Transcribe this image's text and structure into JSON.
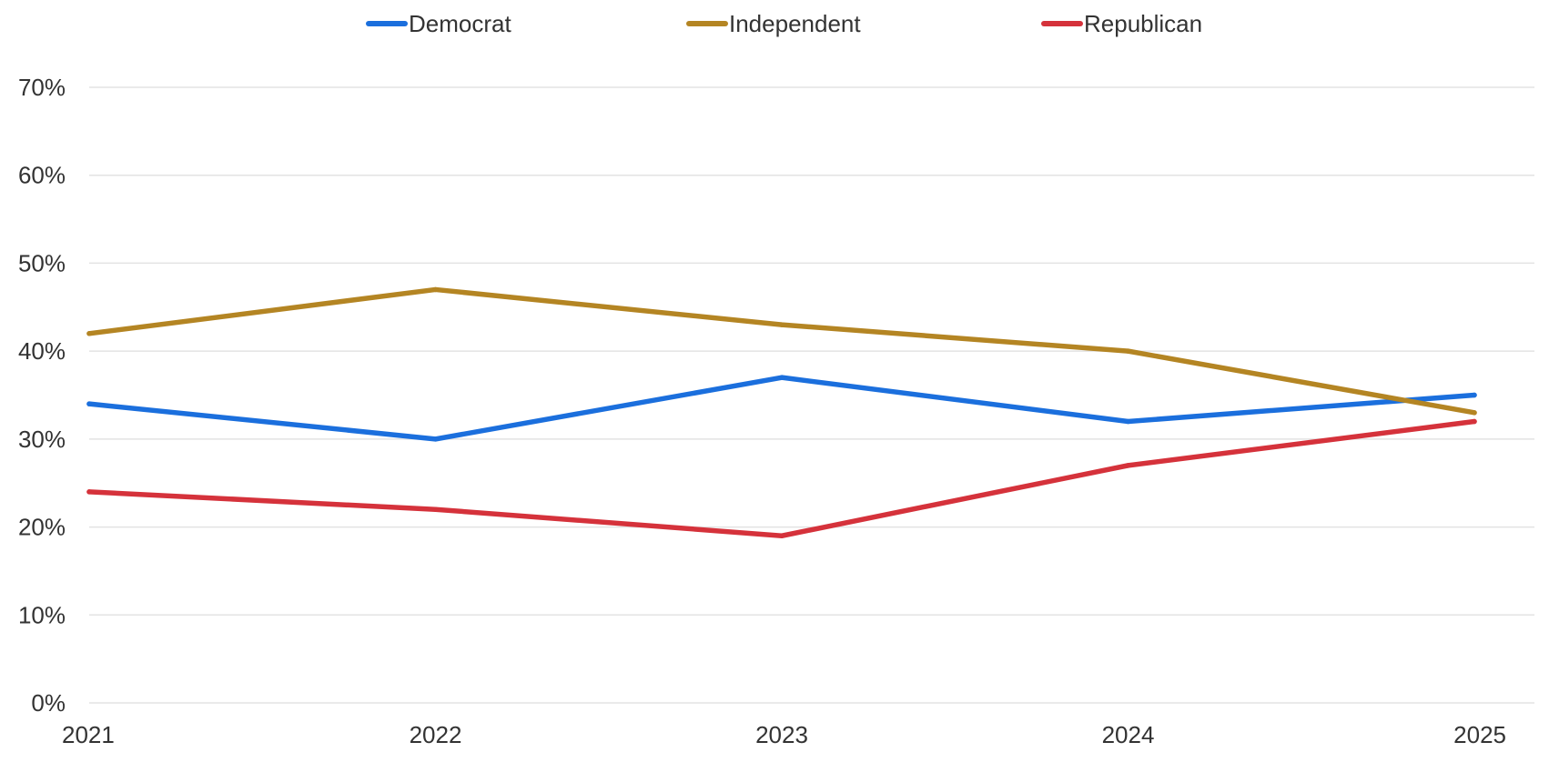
{
  "chart_data": {
    "type": "line",
    "title": "",
    "xlabel": "",
    "ylabel": "",
    "x": [
      "2021",
      "2022",
      "2023",
      "2024",
      "2025"
    ],
    "ylim": [
      0,
      70
    ],
    "y_ticks": [
      "0%",
      "10%",
      "20%",
      "30%",
      "40%",
      "50%",
      "60%",
      "70%"
    ],
    "y_tick_values": [
      0,
      10,
      20,
      30,
      40,
      50,
      60,
      70
    ],
    "grid": true,
    "legend_position": "top-center",
    "series": [
      {
        "name": "Democrat",
        "color": "#1b6fdd",
        "values": [
          34,
          30,
          37,
          32,
          35
        ]
      },
      {
        "name": "Independent",
        "color": "#b48523",
        "values": [
          42,
          47,
          43,
          40,
          33
        ]
      },
      {
        "name": "Republican",
        "color": "#d5323b",
        "values": [
          24,
          22,
          19,
          27,
          32
        ]
      }
    ]
  }
}
